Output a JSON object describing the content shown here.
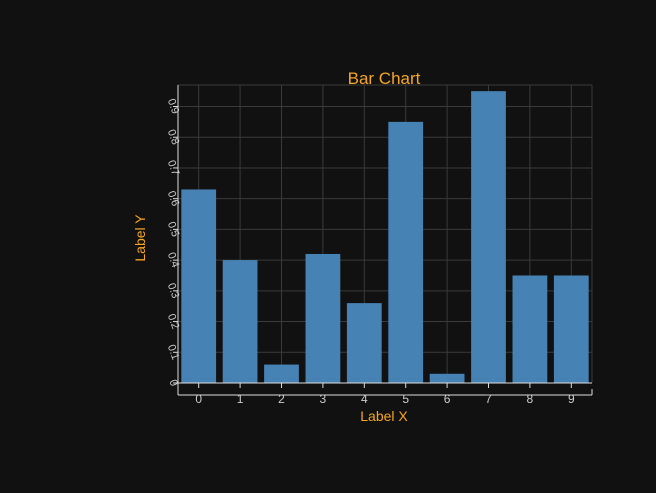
{
  "chart_data": {
    "type": "bar",
    "title": "Bar Chart",
    "xlabel": "Label X",
    "ylabel": "Label Y",
    "categories": [
      "0",
      "1",
      "2",
      "3",
      "4",
      "5",
      "6",
      "7",
      "8",
      "9"
    ],
    "values": [
      0.63,
      0.4,
      0.06,
      0.42,
      0.26,
      0.85,
      0.03,
      0.95,
      0.35,
      0.35
    ],
    "ylim": [
      0,
      0.97
    ],
    "yticks": [
      "0",
      "0.1",
      "0.2",
      "0.3",
      "0.4",
      "0.5",
      "0.6",
      "0.7",
      "0.8",
      "0.9"
    ],
    "grid": true,
    "legend": "none",
    "colors": {
      "background": "#111111",
      "bar": "#4682b4",
      "grid": "#3a3a3a",
      "axis": "#dddddd",
      "tick_label": "#cccccc",
      "title": "#f5a623",
      "axis_label": "#f5a623"
    }
  }
}
